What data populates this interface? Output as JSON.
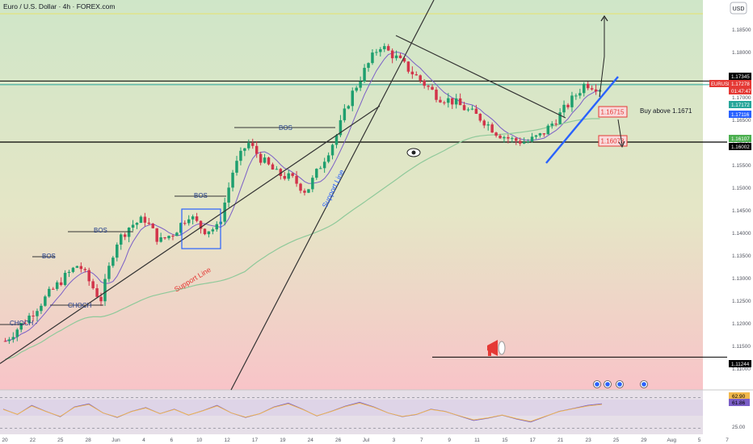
{
  "header": {
    "title": "Euro / U.S. Dollar · 4h · FOREX.com",
    "currency_button": "USD"
  },
  "colors": {
    "up": "#1e9f6e",
    "down": "#d2344a",
    "bg_top": "#cfe6c8",
    "bg_bottom": "#f8c4c8",
    "annotation_blue": "#2962ff",
    "annotation_red": "#e53935",
    "ma_fast": "#7b5fc7",
    "ma_slow": "#8fc99a",
    "rsi": "#7b5fc7"
  },
  "chart_data": [
    {
      "type": "candlestick",
      "symbol": "EURUSD",
      "timeframe": "4h",
      "ylim": [
        1.1075,
        1.19
      ],
      "x_ticks": [
        "20",
        "22",
        "25",
        "28",
        "Jun",
        "4",
        "6",
        "10",
        "12",
        "17",
        "19",
        "24",
        "26",
        "Jul",
        "3",
        "7",
        "9",
        "11",
        "15",
        "17",
        "21",
        "23",
        "25",
        "29",
        "Aug",
        "5",
        "7"
      ],
      "y_ticks": [
        "1.18500",
        "1.18000",
        "1.17500",
        "1.17000",
        "1.16500",
        "1.16000",
        "1.15500",
        "1.15000",
        "1.14500",
        "1.14000",
        "1.13500",
        "1.13000",
        "1.12500",
        "1.12000",
        "1.11500",
        "1.11000"
      ],
      "price_path": [
        [
          0,
          1.116
        ],
        [
          0.03,
          1.121
        ],
        [
          0.06,
          1.1265
        ],
        [
          0.08,
          1.13
        ],
        [
          0.1,
          1.133
        ],
        [
          0.13,
          1.125
        ],
        [
          0.15,
          1.1375
        ],
        [
          0.17,
          1.1415
        ],
        [
          0.19,
          1.143
        ],
        [
          0.21,
          1.138
        ],
        [
          0.23,
          1.14
        ],
        [
          0.25,
          1.144
        ],
        [
          0.27,
          1.1405
        ],
        [
          0.29,
          1.141
        ],
        [
          0.31,
          1.1535
        ],
        [
          0.33,
          1.16
        ],
        [
          0.35,
          1.156
        ],
        [
          0.37,
          1.153
        ],
        [
          0.39,
          1.152
        ],
        [
          0.41,
          1.149
        ],
        [
          0.43,
          1.155
        ],
        [
          0.45,
          1.161
        ],
        [
          0.47,
          1.17
        ],
        [
          0.49,
          1.176
        ],
        [
          0.51,
          1.1815
        ],
        [
          0.53,
          1.179
        ],
        [
          0.55,
          1.176
        ],
        [
          0.57,
          1.173
        ],
        [
          0.59,
          1.17
        ],
        [
          0.61,
          1.169
        ],
        [
          0.63,
          1.167
        ],
        [
          0.65,
          1.165
        ],
        [
          0.67,
          1.162
        ],
        [
          0.69,
          1.1605
        ],
        [
          0.71,
          1.16
        ],
        [
          0.73,
          1.1615
        ],
        [
          0.75,
          1.165
        ],
        [
          0.77,
          1.169
        ],
        [
          0.79,
          1.173
        ],
        [
          0.81,
          1.172
        ]
      ],
      "annotations": {
        "bos_labels": [
          "BOS",
          "BOS",
          "BOS",
          "BOS"
        ],
        "choch_labels": [
          "CHOCH",
          "CHOCH -"
        ],
        "support_line_label": "Support Line",
        "support_line_label_2": "Support Line",
        "buy_text": "Buy above 1.1671",
        "level_1": "1.16715",
        "level_2": "1.16073"
      },
      "price_labels": [
        {
          "value": "1.17345",
          "color": "#000000"
        },
        {
          "value": "1.17278",
          "color": "#e53935",
          "text": "EURUSD"
        },
        {
          "value": "01:47:47",
          "color": "#e53935"
        },
        {
          "value": "1.17172",
          "color": "#26a69a"
        },
        {
          "value": "1.17116",
          "color": "#2962ff"
        },
        {
          "value": "1.16107",
          "color": "#4caf50"
        },
        {
          "value": "1.16002",
          "color": "#000000"
        },
        {
          "value": "1.11244",
          "color": "#000000"
        }
      ]
    },
    {
      "type": "line",
      "name": "RSI",
      "ylim": [
        25,
        75
      ],
      "y_ticks": [
        "62.90",
        "61.86",
        "25.00"
      ],
      "values": [
        55,
        48,
        60,
        52,
        45,
        58,
        62,
        50,
        44,
        52,
        57,
        49,
        55,
        47,
        53,
        60,
        50,
        44,
        49,
        58,
        63,
        55,
        46,
        52,
        59,
        64,
        58,
        50,
        45,
        48,
        55,
        52,
        46,
        40,
        43,
        47,
        42,
        38,
        45,
        52,
        56,
        60,
        62
      ]
    }
  ]
}
